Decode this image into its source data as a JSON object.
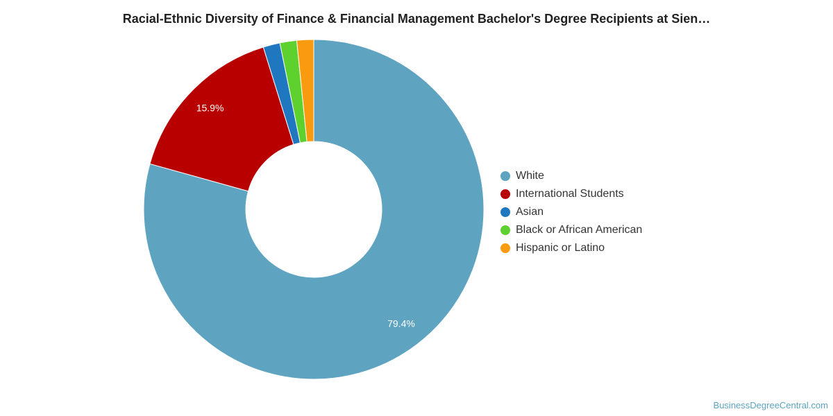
{
  "chart_data": {
    "type": "pie",
    "title": "Racial-Ethnic Diversity of Finance & Financial Management Bachelor's Degree Recipients at Sien…",
    "categories": [
      "White",
      "International Students",
      "Asian",
      "Black or African American",
      "Hispanic or Latino"
    ],
    "values": [
      79.4,
      15.9,
      1.6,
      1.6,
      1.6
    ],
    "data_labels": [
      "79.4%",
      "15.9%",
      "",
      "",
      ""
    ],
    "colors": [
      "#5ea3c0",
      "#b80000",
      "#1f77c0",
      "#5ed12f",
      "#f99a0f"
    ],
    "donut": true,
    "legend_placement": "right"
  },
  "source": "BusinessDegreeCentral.com"
}
